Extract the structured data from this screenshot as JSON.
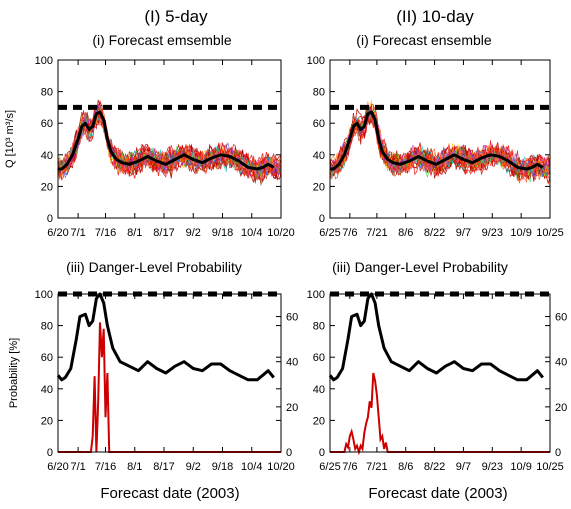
{
  "columns": [
    {
      "heading": "(I) 5-day"
    },
    {
      "heading": "(II) 10-day"
    }
  ],
  "chart_data": [
    {
      "id": "ens5",
      "type": "line",
      "title": "(i)  Forecast emsemble",
      "ylabel": "Q [10³ m³/s]",
      "xlabel": "",
      "ylim": [
        0,
        100
      ],
      "yticks": [
        "0",
        "20",
        "40",
        "60",
        "80",
        "100"
      ],
      "xlim": [
        "2003-06-20",
        "2003-10-20"
      ],
      "xticks": [
        {
          "date": "2003-06-20",
          "label": "6/20"
        },
        {
          "date": "2003-07-01",
          "label": "7/1"
        },
        {
          "date": "2003-07-16",
          "label": "7/16"
        },
        {
          "date": "2003-08-01",
          "label": "8/1"
        },
        {
          "date": "2003-08-17",
          "label": "8/17"
        },
        {
          "date": "2003-09-02",
          "label": "9/2"
        },
        {
          "date": "2003-09-18",
          "label": "9/18"
        },
        {
          "date": "2003-10-04",
          "label": "10/4"
        },
        {
          "date": "2003-10-20",
          "label": "10/20"
        }
      ],
      "threshold": 70,
      "series": [
        {
          "role": "observed",
          "color": "#000000",
          "points": [
            [
              "2003-06-20",
              31
            ],
            [
              "2003-06-22",
              31
            ],
            [
              "2003-06-25",
              34
            ],
            [
              "2003-06-28",
              40
            ],
            [
              "2003-07-01",
              50
            ],
            [
              "2003-07-03",
              58
            ],
            [
              "2003-07-05",
              60
            ],
            [
              "2003-07-07",
              56
            ],
            [
              "2003-07-09",
              58
            ],
            [
              "2003-07-11",
              66
            ],
            [
              "2003-07-13",
              67
            ],
            [
              "2003-07-15",
              62
            ],
            [
              "2003-07-17",
              50
            ],
            [
              "2003-07-19",
              42
            ],
            [
              "2003-07-22",
              37
            ],
            [
              "2003-07-25",
              35
            ],
            [
              "2003-07-29",
              34
            ],
            [
              "2003-08-03",
              36
            ],
            [
              "2003-08-08",
              39
            ],
            [
              "2003-08-13",
              36
            ],
            [
              "2003-08-18",
              34
            ],
            [
              "2003-08-23",
              37
            ],
            [
              "2003-08-28",
              40
            ],
            [
              "2003-09-02",
              37
            ],
            [
              "2003-09-07",
              35
            ],
            [
              "2003-09-12",
              38
            ],
            [
              "2003-09-17",
              40
            ],
            [
              "2003-09-22",
              39
            ],
            [
              "2003-09-27",
              36
            ],
            [
              "2003-10-02",
              32
            ],
            [
              "2003-10-07",
              31
            ],
            [
              "2003-10-10",
              32
            ],
            [
              "2003-10-13",
              34
            ],
            [
              "2003-10-16",
              32
            ]
          ]
        },
        {
          "role": "ensemble",
          "colors": [
            "#cc0000",
            "#e61a1a",
            "#b30000",
            "#ff3300",
            "#ff8000",
            "#ffcc00",
            "#33cc33",
            "#00cccc",
            "#3366ff",
            "#cc33cc",
            "#993300",
            "#ff6666"
          ],
          "members": 28
        }
      ]
    },
    {
      "id": "ens10",
      "type": "line",
      "title": "(i)  Forecast ensemble",
      "ylabel": "",
      "xlabel": "",
      "ylim": [
        0,
        100
      ],
      "yticks": [
        "0",
        "20",
        "40",
        "60",
        "80",
        "100"
      ],
      "xlim": [
        "2003-06-25",
        "2003-10-25"
      ],
      "xticks": [
        {
          "date": "2003-06-25",
          "label": "6/25"
        },
        {
          "date": "2003-07-06",
          "label": "7/6"
        },
        {
          "date": "2003-07-21",
          "label": "7/21"
        },
        {
          "date": "2003-08-06",
          "label": "8/6"
        },
        {
          "date": "2003-08-22",
          "label": "8/22"
        },
        {
          "date": "2003-09-07",
          "label": "9/7"
        },
        {
          "date": "2003-09-23",
          "label": "9/23"
        },
        {
          "date": "2003-10-09",
          "label": "10/9"
        },
        {
          "date": "2003-10-25",
          "label": "10/25"
        }
      ],
      "threshold": 70,
      "series": [
        {
          "role": "observed",
          "color": "#000000",
          "points": [
            [
              "2003-06-25",
              31
            ],
            [
              "2003-06-27",
              31
            ],
            [
              "2003-06-30",
              34
            ],
            [
              "2003-07-03",
              40
            ],
            [
              "2003-07-06",
              50
            ],
            [
              "2003-07-08",
              58
            ],
            [
              "2003-07-10",
              60
            ],
            [
              "2003-07-12",
              56
            ],
            [
              "2003-07-14",
              58
            ],
            [
              "2003-07-16",
              66
            ],
            [
              "2003-07-18",
              67
            ],
            [
              "2003-07-20",
              62
            ],
            [
              "2003-07-22",
              50
            ],
            [
              "2003-07-24",
              42
            ],
            [
              "2003-07-27",
              37
            ],
            [
              "2003-07-30",
              35
            ],
            [
              "2003-08-03",
              34
            ],
            [
              "2003-08-08",
              36
            ],
            [
              "2003-08-13",
              39
            ],
            [
              "2003-08-18",
              36
            ],
            [
              "2003-08-23",
              34
            ],
            [
              "2003-08-28",
              37
            ],
            [
              "2003-09-02",
              40
            ],
            [
              "2003-09-07",
              37
            ],
            [
              "2003-09-12",
              35
            ],
            [
              "2003-09-17",
              38
            ],
            [
              "2003-09-22",
              40
            ],
            [
              "2003-09-27",
              39
            ],
            [
              "2003-10-02",
              36
            ],
            [
              "2003-10-07",
              32
            ],
            [
              "2003-10-12",
              31
            ],
            [
              "2003-10-15",
              32
            ],
            [
              "2003-10-18",
              34
            ],
            [
              "2003-10-21",
              32
            ]
          ]
        },
        {
          "role": "ensemble",
          "colors": [
            "#cc0000",
            "#e61a1a",
            "#b30000",
            "#ff3300",
            "#ff8000",
            "#ffcc00",
            "#33cc33",
            "#00cccc",
            "#3366ff",
            "#cc33cc",
            "#993300",
            "#ff6666"
          ],
          "members": 28
        }
      ]
    },
    {
      "id": "prob5",
      "type": "line",
      "title": "(iii) Danger-Level Probability",
      "ylabel": "Probability [%]",
      "xlabel": "Forecast date (2003)",
      "ylim": [
        0,
        100
      ],
      "yticks": [
        "0",
        "20",
        "40",
        "60",
        "80",
        "100"
      ],
      "y2lim": [
        0,
        70
      ],
      "y2ticks": [
        "0",
        "20",
        "40",
        "60"
      ],
      "xlim": [
        "2003-06-20",
        "2003-10-20"
      ],
      "xticks": [
        {
          "date": "2003-06-20",
          "label": "6/20"
        },
        {
          "date": "2003-07-01",
          "label": "7/1"
        },
        {
          "date": "2003-07-16",
          "label": "7/16"
        },
        {
          "date": "2003-08-01",
          "label": "8/1"
        },
        {
          "date": "2003-08-17",
          "label": "8/17"
        },
        {
          "date": "2003-09-02",
          "label": "9/2"
        },
        {
          "date": "2003-09-18",
          "label": "9/18"
        },
        {
          "date": "2003-10-04",
          "label": "10/4"
        },
        {
          "date": "2003-10-20",
          "label": "10/20"
        }
      ],
      "threshold": 100,
      "series": [
        {
          "role": "discharge",
          "axis": "right",
          "color": "#000000",
          "points": [
            [
              "2003-06-20",
              34
            ],
            [
              "2003-06-22",
              32
            ],
            [
              "2003-06-24",
              33
            ],
            [
              "2003-06-27",
              37
            ],
            [
              "2003-06-30",
              50
            ],
            [
              "2003-07-02",
              60
            ],
            [
              "2003-07-05",
              61
            ],
            [
              "2003-07-07",
              56
            ],
            [
              "2003-07-09",
              58
            ],
            [
              "2003-07-11",
              68
            ],
            [
              "2003-07-13",
              70
            ],
            [
              "2003-07-15",
              66
            ],
            [
              "2003-07-17",
              56
            ],
            [
              "2003-07-20",
              46
            ],
            [
              "2003-07-24",
              40
            ],
            [
              "2003-07-29",
              38
            ],
            [
              "2003-08-03",
              36
            ],
            [
              "2003-08-08",
              40
            ],
            [
              "2003-08-13",
              37
            ],
            [
              "2003-08-18",
              35
            ],
            [
              "2003-08-23",
              38
            ],
            [
              "2003-08-28",
              40
            ],
            [
              "2003-09-02",
              37
            ],
            [
              "2003-09-07",
              36
            ],
            [
              "2003-09-12",
              39
            ],
            [
              "2003-09-17",
              39
            ],
            [
              "2003-09-22",
              36
            ],
            [
              "2003-09-27",
              34
            ],
            [
              "2003-10-02",
              32
            ],
            [
              "2003-10-07",
              32
            ],
            [
              "2003-10-10",
              34
            ],
            [
              "2003-10-13",
              36
            ],
            [
              "2003-10-16",
              33
            ]
          ]
        },
        {
          "role": "probability",
          "axis": "left",
          "color": "#cc0000",
          "points": [
            [
              "2003-06-20",
              0
            ],
            [
              "2003-07-08",
              0
            ],
            [
              "2003-07-09",
              10
            ],
            [
              "2003-07-10",
              48
            ],
            [
              "2003-07-11",
              0
            ],
            [
              "2003-07-12",
              32
            ],
            [
              "2003-07-13",
              82
            ],
            [
              "2003-07-14",
              60
            ],
            [
              "2003-07-15",
              78
            ],
            [
              "2003-07-16",
              22
            ],
            [
              "2003-07-17",
              50
            ],
            [
              "2003-07-18",
              0
            ],
            [
              "2003-10-20",
              0
            ]
          ]
        }
      ]
    },
    {
      "id": "prob10",
      "type": "line",
      "title": "(iii) Danger-Level Probability",
      "ylabel": "",
      "xlabel": "Forecast date (2003)",
      "ylim": [
        0,
        100
      ],
      "yticks": [
        "0",
        "20",
        "40",
        "60",
        "80",
        "100"
      ],
      "y2lim": [
        0,
        70
      ],
      "y2ticks": [
        "0",
        "20",
        "40",
        "60"
      ],
      "xlim": [
        "2003-06-25",
        "2003-10-25"
      ],
      "xticks": [
        {
          "date": "2003-06-25",
          "label": "6/25"
        },
        {
          "date": "2003-07-06",
          "label": "7/6"
        },
        {
          "date": "2003-07-21",
          "label": "7/21"
        },
        {
          "date": "2003-08-06",
          "label": "8/6"
        },
        {
          "date": "2003-08-22",
          "label": "8/22"
        },
        {
          "date": "2003-09-07",
          "label": "9/7"
        },
        {
          "date": "2003-09-23",
          "label": "9/23"
        },
        {
          "date": "2003-10-09",
          "label": "10/9"
        },
        {
          "date": "2003-10-25",
          "label": "10/25"
        }
      ],
      "threshold": 100,
      "series": [
        {
          "role": "discharge",
          "axis": "right",
          "color": "#000000",
          "points": [
            [
              "2003-06-25",
              34
            ],
            [
              "2003-06-27",
              32
            ],
            [
              "2003-06-29",
              33
            ],
            [
              "2003-07-02",
              37
            ],
            [
              "2003-07-05",
              50
            ],
            [
              "2003-07-07",
              60
            ],
            [
              "2003-07-10",
              61
            ],
            [
              "2003-07-12",
              56
            ],
            [
              "2003-07-14",
              58
            ],
            [
              "2003-07-16",
              68
            ],
            [
              "2003-07-18",
              70
            ],
            [
              "2003-07-20",
              66
            ],
            [
              "2003-07-22",
              56
            ],
            [
              "2003-07-25",
              46
            ],
            [
              "2003-07-29",
              40
            ],
            [
              "2003-08-03",
              38
            ],
            [
              "2003-08-08",
              36
            ],
            [
              "2003-08-13",
              40
            ],
            [
              "2003-08-18",
              37
            ],
            [
              "2003-08-23",
              35
            ],
            [
              "2003-08-28",
              38
            ],
            [
              "2003-09-02",
              40
            ],
            [
              "2003-09-07",
              37
            ],
            [
              "2003-09-12",
              36
            ],
            [
              "2003-09-17",
              39
            ],
            [
              "2003-09-22",
              39
            ],
            [
              "2003-09-27",
              36
            ],
            [
              "2003-10-02",
              34
            ],
            [
              "2003-10-07",
              32
            ],
            [
              "2003-10-12",
              32
            ],
            [
              "2003-10-15",
              34
            ],
            [
              "2003-10-18",
              36
            ],
            [
              "2003-10-21",
              33
            ]
          ]
        },
        {
          "role": "probability",
          "axis": "left",
          "color": "#cc0000",
          "points": [
            [
              "2003-06-25",
              0
            ],
            [
              "2003-07-03",
              0
            ],
            [
              "2003-07-04",
              5
            ],
            [
              "2003-07-05",
              3
            ],
            [
              "2003-07-06",
              10
            ],
            [
              "2003-07-07",
              13
            ],
            [
              "2003-07-08",
              8
            ],
            [
              "2003-07-09",
              2
            ],
            [
              "2003-07-10",
              4
            ],
            [
              "2003-07-11",
              0
            ],
            [
              "2003-07-12",
              4
            ],
            [
              "2003-07-13",
              2
            ],
            [
              "2003-07-14",
              12
            ],
            [
              "2003-07-15",
              18
            ],
            [
              "2003-07-16",
              22
            ],
            [
              "2003-07-17",
              32
            ],
            [
              "2003-07-18",
              28
            ],
            [
              "2003-07-19",
              50
            ],
            [
              "2003-07-20",
              45
            ],
            [
              "2003-07-21",
              36
            ],
            [
              "2003-07-22",
              22
            ],
            [
              "2003-07-23",
              8
            ],
            [
              "2003-07-24",
              10
            ],
            [
              "2003-07-25",
              2
            ],
            [
              "2003-07-26",
              6
            ],
            [
              "2003-07-27",
              0
            ],
            [
              "2003-10-25",
              0
            ]
          ]
        }
      ]
    }
  ]
}
